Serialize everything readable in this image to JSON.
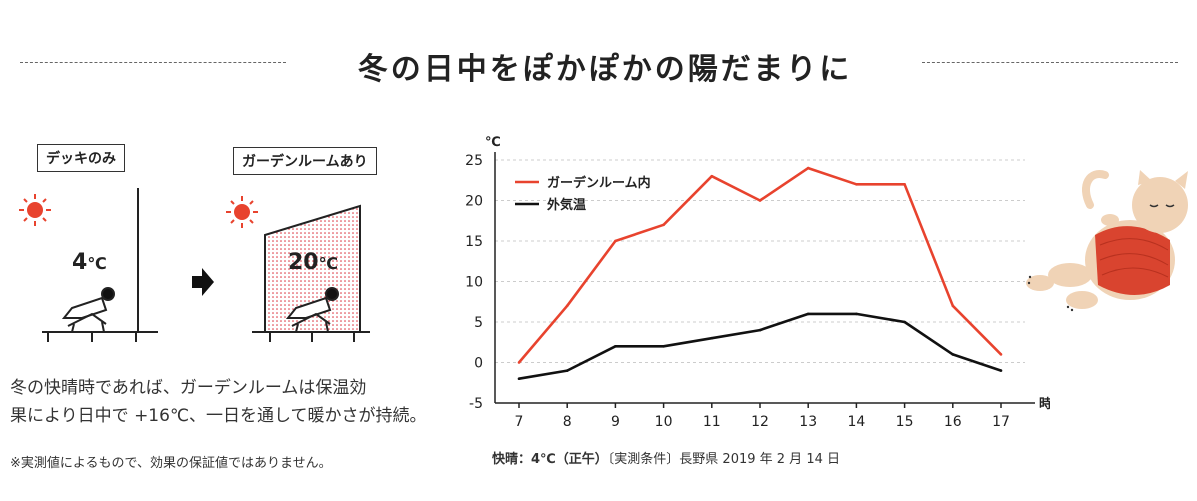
{
  "header": {
    "title": "冬の日中をぽかぽかの陽だまりに"
  },
  "illustration": {
    "deck_label": "デッキのみ",
    "deck_temp": "4",
    "deck_unit": "℃",
    "garden_label": "ガーデンルームあり",
    "garden_temp": "20",
    "garden_unit": "℃",
    "icons": [
      "sun-icon",
      "arrow-right-icon",
      "reclining-person-icon",
      "cat-illustration"
    ],
    "colors": {
      "sun": "#e8432e",
      "room_dots": "#d9303b"
    }
  },
  "text": {
    "description_line1": "冬の快晴時であれば、ガーデンルームは保温効",
    "description_line2": "果により日中で +16℃、一日を通して暖かさが持続。",
    "note": "※実測値によるもので、効果の保証値ではありません。",
    "caption_bold": "快晴：4℃（正午）",
    "caption_rest": "〔実測条件〕長野県 2019 年 2 月 14 日"
  },
  "chart_data": {
    "type": "line",
    "y_unit_label": "℃",
    "x_unit_label": "時",
    "x": [
      7,
      8,
      9,
      10,
      11,
      12,
      13,
      14,
      15,
      16,
      17
    ],
    "ylim": [
      -5,
      25
    ],
    "y_ticks": [
      25,
      20,
      15,
      10,
      5,
      0,
      -5
    ],
    "grid": true,
    "legend_position": "top-left",
    "series": [
      {
        "name": "ガーデンルーム内",
        "color": "#e8432e",
        "values": [
          0,
          7,
          15,
          17,
          23,
          20,
          24,
          22,
          22,
          7,
          1
        ]
      },
      {
        "name": "外気温",
        "color": "#111111",
        "values": [
          -2,
          -1,
          2,
          2,
          3,
          4,
          6,
          6,
          5,
          1,
          -1
        ]
      }
    ]
  }
}
